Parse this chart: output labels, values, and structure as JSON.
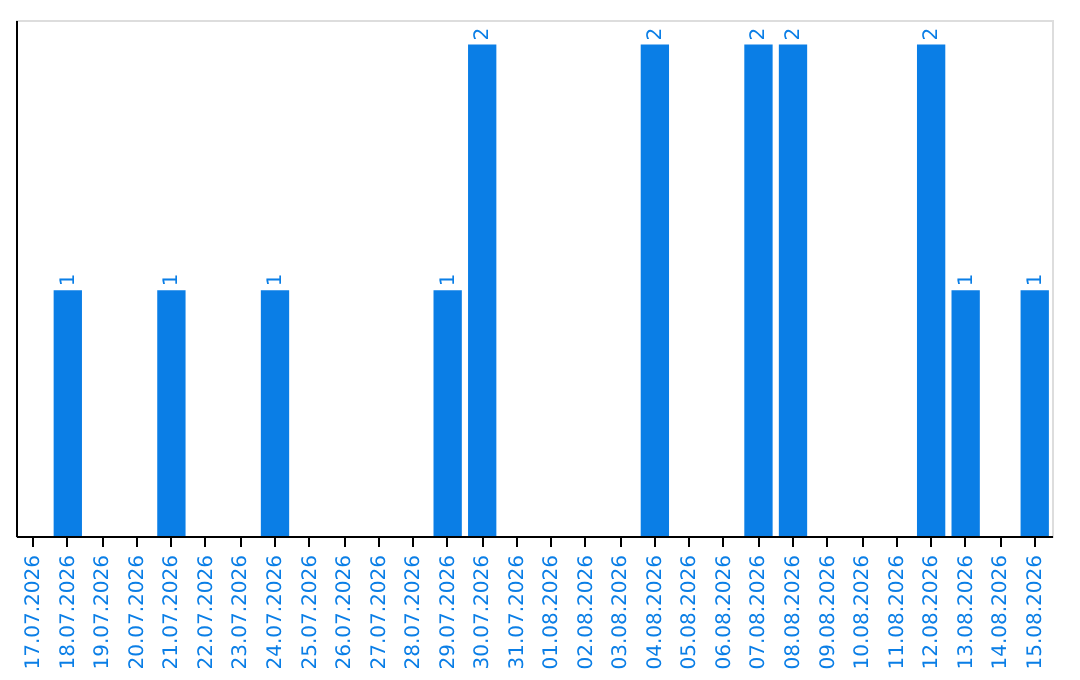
{
  "chart_data": {
    "type": "bar",
    "categories": [
      "17.07.2026",
      "18.07.2026",
      "19.07.2026",
      "20.07.2026",
      "21.07.2026",
      "22.07.2026",
      "23.07.2026",
      "24.07.2026",
      "25.07.2026",
      "26.07.2026",
      "27.07.2026",
      "28.07.2026",
      "29.07.2026",
      "30.07.2026",
      "31.07.2026",
      "01.08.2026",
      "02.08.2026",
      "03.08.2026",
      "04.08.2026",
      "05.08.2026",
      "06.08.2026",
      "07.08.2026",
      "08.08.2026",
      "09.08.2026",
      "10.08.2026",
      "11.08.2026",
      "12.08.2026",
      "13.08.2026",
      "14.08.2026",
      "15.08.2026"
    ],
    "values": [
      null,
      1,
      null,
      null,
      1,
      null,
      null,
      1,
      null,
      null,
      null,
      null,
      1,
      2,
      null,
      null,
      null,
      null,
      2,
      null,
      null,
      2,
      2,
      null,
      null,
      null,
      2,
      1,
      null,
      1
    ],
    "color": "#0a7ee6",
    "data_labels": true,
    "tick_labels": "x"
  }
}
